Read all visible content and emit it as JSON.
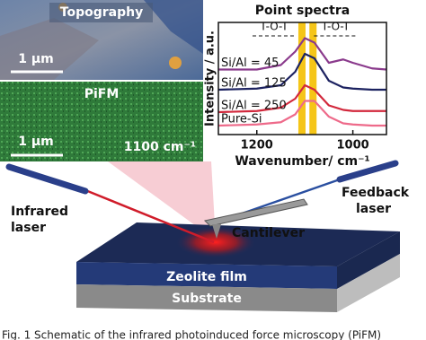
{
  "panels": {
    "topography_title": "Topography",
    "topography_scale": "1 μm",
    "pifm_title": "PiFM",
    "pifm_scale": "1 μm",
    "pifm_wavenumber": "1100 cm⁻¹"
  },
  "chart_data": {
    "type": "line",
    "title": "Point spectra",
    "x_label": "Wavenumber/ cm⁻¹",
    "y_label": "Intensity / a.u.",
    "x": [
      1280,
      1200,
      1150,
      1120,
      1100,
      1080,
      1050,
      1020,
      1000,
      960,
      930
    ],
    "series": [
      {
        "name": "Si/Al = 45",
        "color": "#8a3a8c",
        "values": [
          5.8,
          5.8,
          6.2,
          7.4,
          8.6,
          8.2,
          6.4,
          6.7,
          6.4,
          5.9,
          5.8
        ]
      },
      {
        "name": "Si/Al = 125",
        "color": "#1c2260",
        "values": [
          4.0,
          4.1,
          4.4,
          5.6,
          7.2,
          6.8,
          4.8,
          4.2,
          4.1,
          4.0,
          4.0
        ]
      },
      {
        "name": "Si/Al = 250",
        "color": "#d2283c",
        "values": [
          2.0,
          2.1,
          2.4,
          3.2,
          4.4,
          4.0,
          2.6,
          2.2,
          2.1,
          2.1,
          2.1
        ]
      },
      {
        "name": "Pure-Si",
        "color": "#ee6a8a",
        "values": [
          0.8,
          0.9,
          1.1,
          1.8,
          3.0,
          3.0,
          1.6,
          1.0,
          0.9,
          0.8,
          0.8
        ]
      }
    ],
    "xlim": [
      1280,
      930
    ],
    "xticks": [
      1200,
      1000
    ],
    "ylim": [
      0,
      10
    ],
    "bands": [
      1106,
      1083
    ],
    "band_color": "#f5c518",
    "annotations": [
      {
        "text": "T-O-T",
        "x": 1164
      },
      {
        "text": "T-O-T",
        "x": 1036
      }
    ]
  },
  "schematic": {
    "infrared_laser": [
      "Infrared",
      "laser"
    ],
    "feedback_laser": [
      "Feedback",
      "laser"
    ],
    "cantilever": "Cantilever",
    "zeolite_film": "Zeolite film",
    "substrate": "Substrate"
  },
  "caption": "Fig. 1   Schematic of the infrared photoinduced force microscopy (PiFM)"
}
